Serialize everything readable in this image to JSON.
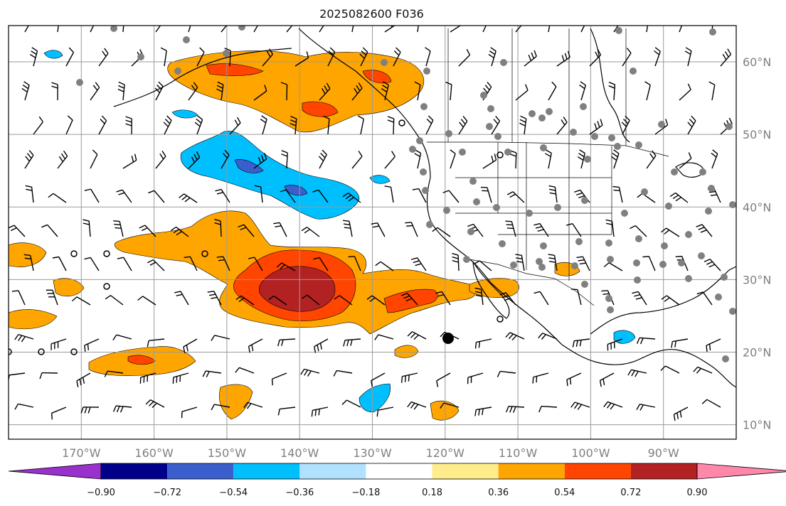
{
  "title": "2025082600 F036",
  "map": {
    "lat_labels": [
      "60°N",
      "50°N",
      "40°N",
      "30°N",
      "20°N",
      "10°N"
    ],
    "lon_labels": [
      "170°W",
      "160°W",
      "150°W",
      "140°W",
      "130°W",
      "120°W",
      "110°W",
      "100°W",
      "90°W"
    ],
    "lat_values": [
      60,
      50,
      40,
      30,
      20,
      10
    ],
    "lon_values": [
      -170,
      -160,
      -150,
      -140,
      -130,
      -120,
      -110,
      -100,
      -90
    ],
    "extent": {
      "lon_min": -180,
      "lon_max": -80,
      "lat_min": 8,
      "lat_max": 65
    },
    "colors": {
      "border": "#000000",
      "grid": "#9a9a9a",
      "coast": "#000000",
      "station": "#808080"
    }
  },
  "colorbar": {
    "levels": [
      -0.9,
      -0.72,
      -0.54,
      -0.36,
      -0.18,
      0.18,
      0.36,
      0.54,
      0.72,
      0.9
    ],
    "labels": [
      "−0.90",
      "−0.72",
      "−0.54",
      "−0.36",
      "−0.18",
      "0.18",
      "0.36",
      "0.54",
      "0.72",
      "0.90"
    ],
    "colors": [
      "#9932cc",
      "#00008b",
      "#3a5fcd",
      "#00bfff",
      "#b0e2ff",
      "#ffffff",
      "#ffec8b",
      "#ffa500",
      "#ff4500",
      "#b22222",
      "#ff88aa"
    ],
    "under_color": "#9932cc",
    "over_color": "#ff88aa"
  }
}
